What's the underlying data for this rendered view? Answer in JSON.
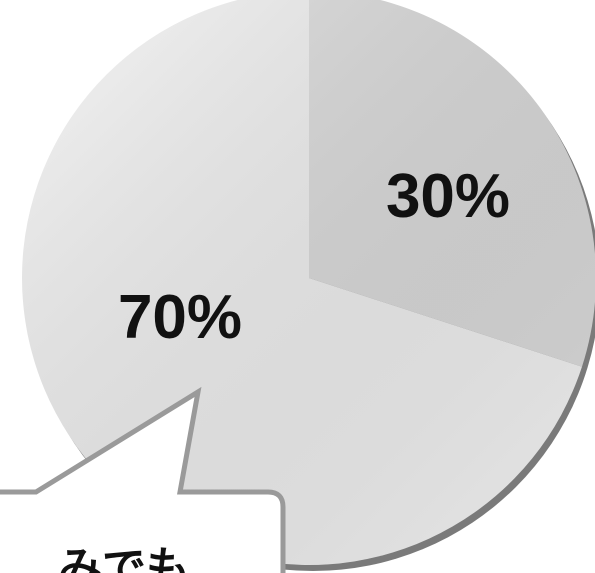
{
  "chart_data": {
    "type": "pie",
    "categories": [
      "",
      ""
    ],
    "values": [
      30,
      70
    ],
    "labels": [
      "30%",
      "70%"
    ],
    "colors": [
      "#dcdcdc",
      "#f2f2f2"
    ],
    "start_angle_deg": 0,
    "direction": "clockwise",
    "title": "",
    "legend": "none"
  },
  "callout": {
    "text": "みでも"
  }
}
